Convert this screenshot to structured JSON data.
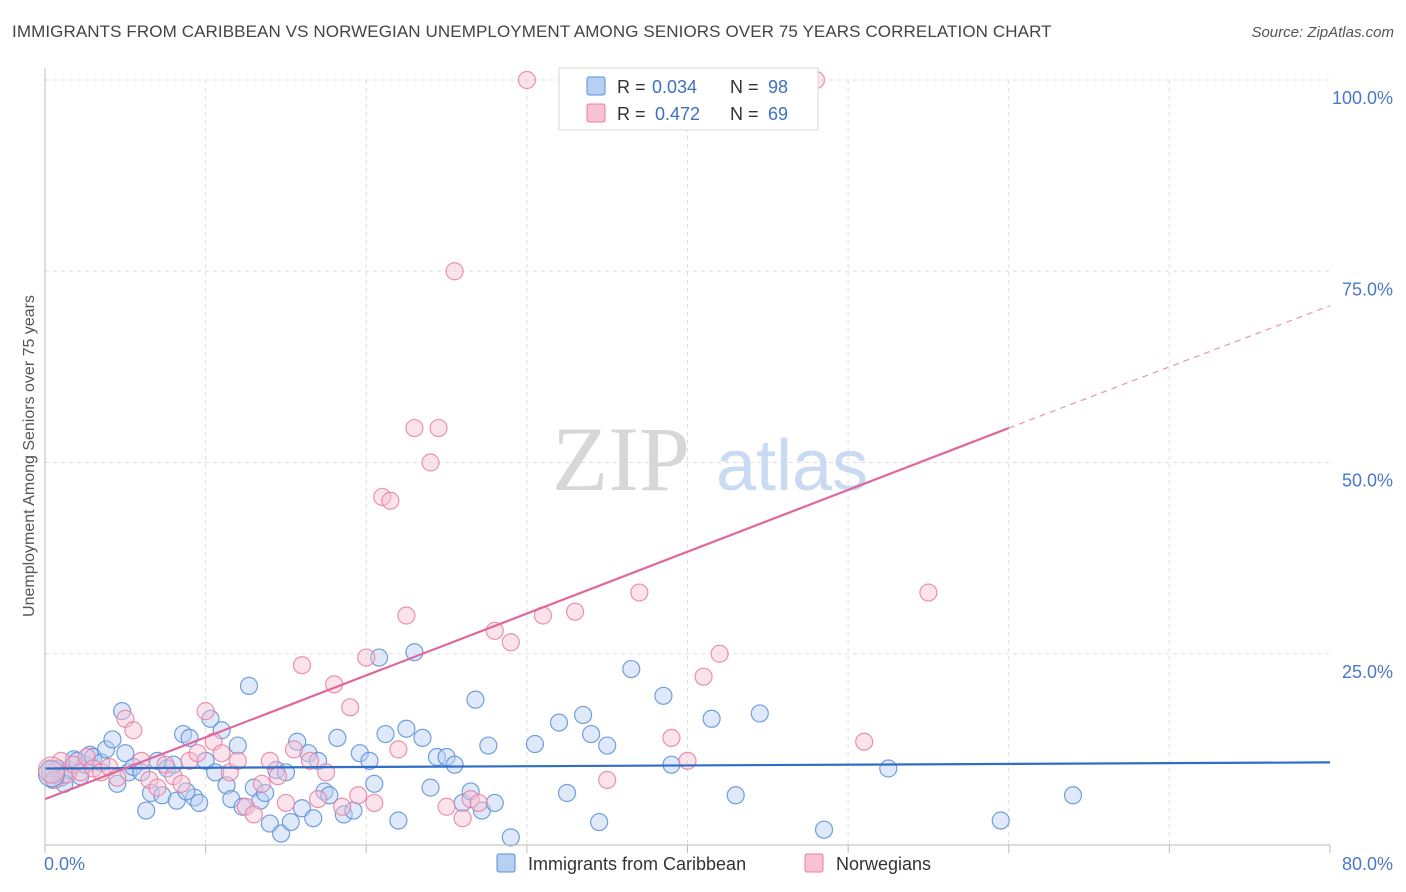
{
  "title": "IMMIGRANTS FROM CARIBBEAN VS NORWEGIAN UNEMPLOYMENT AMONG SENIORS OVER 75 YEARS CORRELATION CHART",
  "source": "Source: ZipAtlas.com",
  "watermark": {
    "zip": "ZIP",
    "atlas": "atlas"
  },
  "colors": {
    "blue": "#5b8fd6",
    "blue_fill": "#b7cff3",
    "blue_line": "#2f6dc6",
    "pink": "#e87fa3",
    "pink_fill": "#f7c2d3",
    "pink_line": "#e0679a",
    "axis_text": "#4a78c8",
    "grid": "#dddddd"
  },
  "legend": {
    "rows": [
      {
        "r_label": "R =",
        "r_value": "0.034",
        "n_label": "N =",
        "n_value": "98"
      },
      {
        "r_label": "R =",
        "r_value": "0.472",
        "n_label": "N =",
        "n_value": "69"
      }
    ]
  },
  "chart_data": {
    "type": "scatter",
    "title": "IMMIGRANTS FROM CARIBBEAN VS NORWEGIAN UNEMPLOYMENT AMONG SENIORS OVER 75 YEARS CORRELATION CHART",
    "xlabel": "",
    "ylabel": "Unemployment Among Seniors over 75 years",
    "xlim": [
      0,
      80
    ],
    "ylim": [
      0,
      100
    ],
    "x_tick_labels": [
      "0.0%",
      "80.0%"
    ],
    "y_ticks": [
      25,
      50,
      75,
      100
    ],
    "y_tick_labels": [
      "25.0%",
      "50.0%",
      "75.0%",
      "100.0%"
    ],
    "grid": true,
    "legend_position": "bottom",
    "series": [
      {
        "name": "Immigrants from Caribbean",
        "color": "#5b8fd6",
        "trend": {
          "x": [
            0,
            80
          ],
          "y": [
            10.0,
            10.8
          ]
        },
        "points": [
          [
            0.3,
            9.5
          ],
          [
            0.5,
            8.5
          ],
          [
            0.8,
            10.0
          ],
          [
            1.0,
            8.8
          ],
          [
            1.2,
            9.2
          ],
          [
            1.5,
            9.8
          ],
          [
            1.8,
            11.2
          ],
          [
            2.2,
            9.0
          ],
          [
            2.5,
            10.5
          ],
          [
            2.8,
            11.8
          ],
          [
            3.0,
            11.5
          ],
          [
            3.5,
            10.8
          ],
          [
            3.8,
            12.5
          ],
          [
            4.2,
            13.8
          ],
          [
            4.5,
            8.0
          ],
          [
            4.8,
            17.5
          ],
          [
            5.2,
            9.5
          ],
          [
            5.5,
            10.2
          ],
          [
            6.0,
            9.5
          ],
          [
            6.3,
            4.5
          ],
          [
            6.6,
            6.8
          ],
          [
            7.0,
            11.0
          ],
          [
            7.3,
            6.5
          ],
          [
            7.6,
            10.0
          ],
          [
            8.0,
            10.5
          ],
          [
            8.2,
            5.8
          ],
          [
            8.6,
            14.5
          ],
          [
            9.0,
            14.0
          ],
          [
            9.3,
            6.2
          ],
          [
            9.6,
            5.5
          ],
          [
            10.0,
            11.0
          ],
          [
            10.3,
            16.5
          ],
          [
            10.6,
            9.5
          ],
          [
            11.0,
            15.0
          ],
          [
            11.3,
            7.8
          ],
          [
            11.6,
            6.0
          ],
          [
            12.0,
            13.0
          ],
          [
            12.3,
            5.0
          ],
          [
            12.7,
            20.8
          ],
          [
            13.0,
            7.5
          ],
          [
            13.4,
            5.8
          ],
          [
            13.7,
            6.8
          ],
          [
            14.0,
            2.8
          ],
          [
            14.4,
            9.8
          ],
          [
            14.7,
            1.5
          ],
          [
            15.0,
            9.5
          ],
          [
            15.3,
            3.0
          ],
          [
            15.7,
            13.5
          ],
          [
            16.0,
            4.8
          ],
          [
            16.4,
            12.0
          ],
          [
            16.7,
            3.5
          ],
          [
            17.0,
            11.0
          ],
          [
            17.4,
            7.0
          ],
          [
            17.7,
            6.5
          ],
          [
            18.2,
            14.0
          ],
          [
            18.6,
            4.0
          ],
          [
            19.2,
            4.5
          ],
          [
            19.6,
            12.0
          ],
          [
            20.2,
            11.0
          ],
          [
            20.5,
            8.0
          ],
          [
            20.8,
            24.5
          ],
          [
            21.2,
            14.5
          ],
          [
            22.0,
            3.2
          ],
          [
            22.5,
            15.2
          ],
          [
            23.0,
            25.2
          ],
          [
            23.5,
            14.0
          ],
          [
            24.0,
            7.5
          ],
          [
            24.4,
            11.5
          ],
          [
            25.0,
            11.5
          ],
          [
            25.5,
            10.5
          ],
          [
            26.0,
            5.5
          ],
          [
            26.5,
            7.0
          ],
          [
            26.8,
            19.0
          ],
          [
            27.2,
            4.5
          ],
          [
            27.6,
            13.0
          ],
          [
            28.0,
            5.5
          ],
          [
            29.0,
            1.0
          ],
          [
            30.5,
            13.2
          ],
          [
            32.0,
            16.0
          ],
          [
            32.5,
            6.8
          ],
          [
            33.5,
            17.0
          ],
          [
            34.0,
            14.5
          ],
          [
            34.5,
            3.0
          ],
          [
            35.0,
            13.0
          ],
          [
            36.5,
            23.0
          ],
          [
            38.5,
            19.5
          ],
          [
            39.0,
            10.5
          ],
          [
            41.5,
            16.5
          ],
          [
            43.0,
            6.5
          ],
          [
            44.5,
            17.2
          ],
          [
            48.5,
            2.0
          ],
          [
            52.5,
            10.0
          ],
          [
            59.5,
            3.2
          ],
          [
            64.0,
            6.5
          ],
          [
            1.2,
            8.0
          ],
          [
            5.0,
            12.0
          ],
          [
            2.0,
            11.0
          ],
          [
            8.8,
            7.0
          ]
        ]
      },
      {
        "name": "Norwegians",
        "color": "#e87fa3",
        "trend": {
          "x": [
            0,
            60
          ],
          "y": [
            6.0,
            54.5
          ]
        },
        "trend_ext": {
          "x": [
            60,
            80
          ],
          "y": [
            54.5,
            70.5
          ]
        },
        "points": [
          [
            0.3,
            10.0
          ],
          [
            0.6,
            8.5
          ],
          [
            1.0,
            11.0
          ],
          [
            1.4,
            9.2
          ],
          [
            1.8,
            10.5
          ],
          [
            2.2,
            9.5
          ],
          [
            2.6,
            11.5
          ],
          [
            3.0,
            10.0
          ],
          [
            3.5,
            9.5
          ],
          [
            4.0,
            10.2
          ],
          [
            4.5,
            8.8
          ],
          [
            5.0,
            16.5
          ],
          [
            5.5,
            15.0
          ],
          [
            6.0,
            11.0
          ],
          [
            6.5,
            8.5
          ],
          [
            7.0,
            7.5
          ],
          [
            7.5,
            10.5
          ],
          [
            8.0,
            9.0
          ],
          [
            8.5,
            8.0
          ],
          [
            9.0,
            11.0
          ],
          [
            9.5,
            12.0
          ],
          [
            10.0,
            17.5
          ],
          [
            10.5,
            13.5
          ],
          [
            11.0,
            12.0
          ],
          [
            11.5,
            9.5
          ],
          [
            12.0,
            11.0
          ],
          [
            12.5,
            5.0
          ],
          [
            13.0,
            4.0
          ],
          [
            13.5,
            8.0
          ],
          [
            14.0,
            11.0
          ],
          [
            14.5,
            9.0
          ],
          [
            15.0,
            5.5
          ],
          [
            15.5,
            12.5
          ],
          [
            16.0,
            23.5
          ],
          [
            16.5,
            11.0
          ],
          [
            17.0,
            6.0
          ],
          [
            17.5,
            9.5
          ],
          [
            18.0,
            21.0
          ],
          [
            18.5,
            5.0
          ],
          [
            19.0,
            18.0
          ],
          [
            19.5,
            6.5
          ],
          [
            20.0,
            24.5
          ],
          [
            20.5,
            5.5
          ],
          [
            21.0,
            45.5
          ],
          [
            21.5,
            45.0
          ],
          [
            22.0,
            12.5
          ],
          [
            22.5,
            30.0
          ],
          [
            23.0,
            54.5
          ],
          [
            24.0,
            50.0
          ],
          [
            24.5,
            54.5
          ],
          [
            25.0,
            5.0
          ],
          [
            25.5,
            75.0
          ],
          [
            26.0,
            3.5
          ],
          [
            26.5,
            6.0
          ],
          [
            27.0,
            5.5
          ],
          [
            28.0,
            28.0
          ],
          [
            29.0,
            26.5
          ],
          [
            30.0,
            100.0
          ],
          [
            31.0,
            30.0
          ],
          [
            33.0,
            30.5
          ],
          [
            35.0,
            8.5
          ],
          [
            37.0,
            33.0
          ],
          [
            39.0,
            14.0
          ],
          [
            40.0,
            11.0
          ],
          [
            41.0,
            22.0
          ],
          [
            42.0,
            25.0
          ],
          [
            48.0,
            100.0
          ],
          [
            51.0,
            13.5
          ],
          [
            55.0,
            33.0
          ]
        ]
      }
    ]
  }
}
